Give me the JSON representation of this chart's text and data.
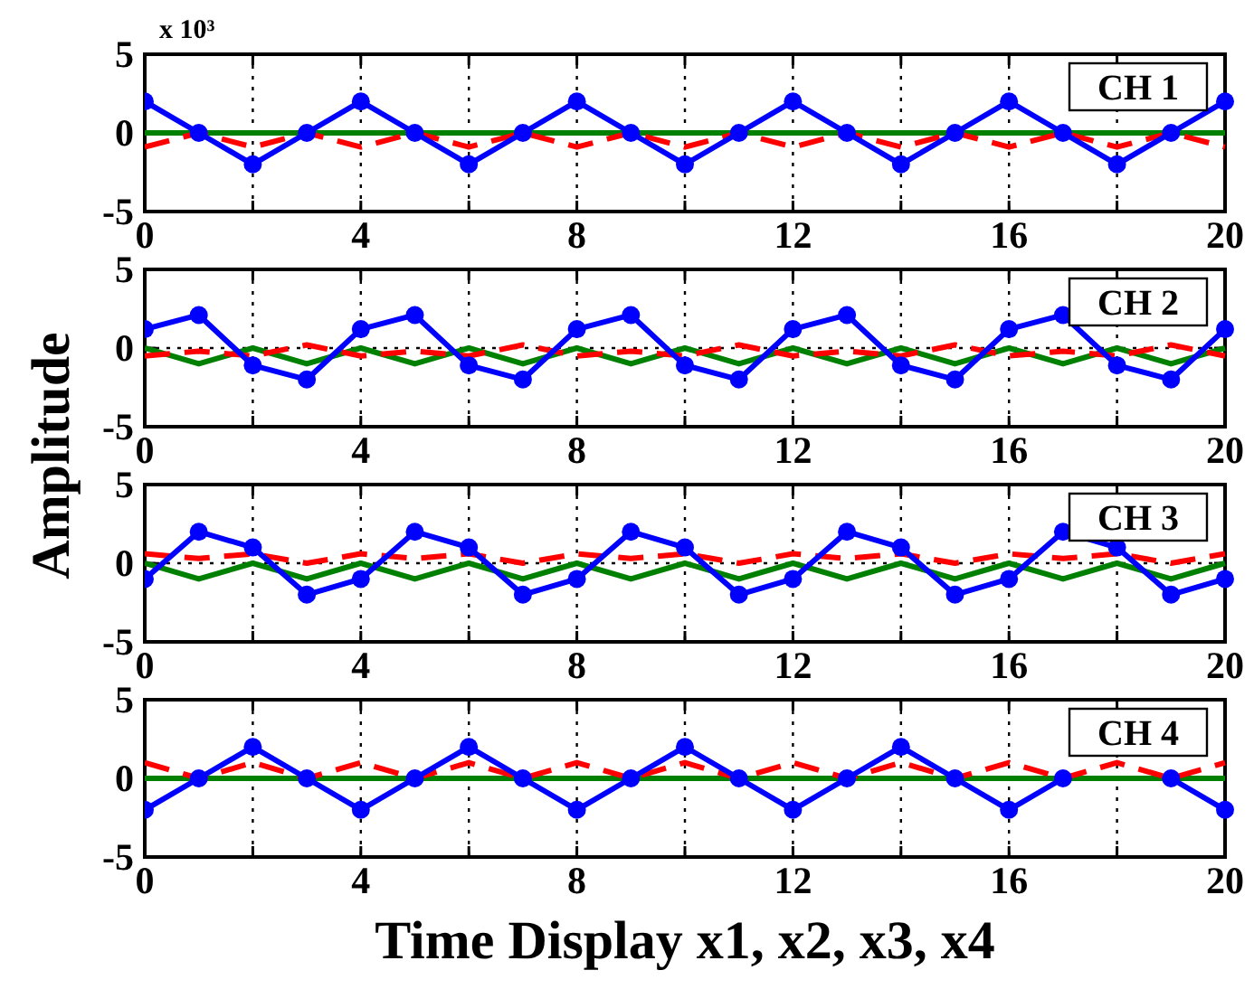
{
  "chart_data": [
    {
      "type": "line",
      "ylabel": "Amplitude",
      "annotations": [
        "x 10³",
        "CH 1"
      ],
      "x": [
        0,
        1,
        2,
        3,
        4,
        5,
        6,
        7,
        8,
        9,
        10,
        11,
        12,
        13,
        14,
        15,
        16,
        17,
        18,
        19,
        20
      ],
      "xlim": [
        0,
        20
      ],
      "xticks": [
        0,
        {
          "value": 2,
          "label": null
        },
        4,
        {
          "value": 6,
          "label": null
        },
        8,
        {
          "value": 10,
          "label": null
        },
        12,
        {
          "value": 14,
          "label": null
        },
        16,
        {
          "value": 18,
          "label": null
        },
        20
      ],
      "ylim": [
        -5,
        5
      ],
      "yticks": [
        -5,
        0,
        5
      ],
      "grid": true,
      "series": [
        {
          "color": "#008000",
          "line_style": "solid",
          "marker": "none",
          "values": [
            0,
            0,
            0,
            0,
            0,
            0,
            0,
            0,
            0,
            0,
            0,
            0,
            0,
            0,
            0,
            0,
            0,
            0,
            0,
            0,
            0
          ]
        },
        {
          "color": "#ff0000",
          "line_style": "dashed",
          "marker": "none",
          "values": [
            -0.9,
            0,
            -0.9,
            0,
            -0.9,
            0,
            -0.9,
            0,
            -0.9,
            0,
            -0.9,
            0,
            -0.9,
            0,
            -0.9,
            0,
            -0.9,
            0,
            -0.9,
            0,
            -0.9
          ]
        },
        {
          "color": "#0000ff",
          "line_style": "solid",
          "marker": "circle",
          "values": [
            2,
            0,
            -2,
            0,
            2,
            0,
            -2,
            0,
            2,
            0,
            -2,
            0,
            2,
            0,
            -2,
            0,
            2,
            0,
            -2,
            0,
            2
          ]
        }
      ]
    },
    {
      "type": "line",
      "annotations": [
        "CH 2"
      ],
      "x": [
        0,
        1,
        2,
        3,
        4,
        5,
        6,
        7,
        8,
        9,
        10,
        11,
        12,
        13,
        14,
        15,
        16,
        17,
        18,
        19,
        20
      ],
      "xlim": [
        0,
        20
      ],
      "xticks": [
        0,
        {
          "value": 2,
          "label": null
        },
        4,
        {
          "value": 6,
          "label": null
        },
        8,
        {
          "value": 10,
          "label": null
        },
        12,
        {
          "value": 14,
          "label": null
        },
        16,
        {
          "value": 18,
          "label": null
        },
        20
      ],
      "ylim": [
        -5,
        5
      ],
      "yticks": [
        -5,
        0,
        5
      ],
      "grid": true,
      "series": [
        {
          "color": "#008000",
          "line_style": "solid",
          "marker": "none",
          "values": [
            0,
            -1,
            0,
            -1,
            0,
            -1,
            0,
            -1,
            0,
            -1,
            0,
            -1,
            0,
            -1,
            0,
            -1,
            0,
            -1,
            0,
            -1,
            0
          ]
        },
        {
          "color": "#ff0000",
          "line_style": "dashed",
          "marker": "none",
          "values": [
            -0.5,
            -0.2,
            -0.5,
            0.2,
            -0.5,
            -0.2,
            -0.5,
            0.2,
            -0.5,
            -0.2,
            -0.5,
            0.2,
            -0.5,
            -0.2,
            -0.5,
            0.2,
            -0.5,
            -0.2,
            -0.5,
            0.2,
            -0.5
          ]
        },
        {
          "color": "#0000ff",
          "line_style": "solid",
          "marker": "circle",
          "values": [
            1.2,
            2.1,
            -1.1,
            -2,
            1.2,
            2.1,
            -1.1,
            -2,
            1.2,
            2.1,
            -1.1,
            -2,
            1.2,
            2.1,
            -1.1,
            -2,
            1.2,
            2.1,
            -1.1,
            -2,
            1.2
          ]
        }
      ]
    },
    {
      "type": "line",
      "annotations": [
        "CH 3"
      ],
      "x": [
        0,
        1,
        2,
        3,
        4,
        5,
        6,
        7,
        8,
        9,
        10,
        11,
        12,
        13,
        14,
        15,
        16,
        17,
        18,
        19,
        20
      ],
      "xlim": [
        0,
        20
      ],
      "xticks": [
        0,
        {
          "value": 2,
          "label": null
        },
        4,
        {
          "value": 6,
          "label": null
        },
        8,
        {
          "value": 10,
          "label": null
        },
        12,
        {
          "value": 14,
          "label": null
        },
        16,
        {
          "value": 18,
          "label": null
        },
        20
      ],
      "ylim": [
        -5,
        5
      ],
      "yticks": [
        -5,
        0,
        5
      ],
      "grid": true,
      "series": [
        {
          "color": "#008000",
          "line_style": "solid",
          "marker": "none",
          "values": [
            0,
            -1,
            0,
            -1,
            0,
            -1,
            0,
            -1,
            0,
            -1,
            0,
            -1,
            0,
            -1,
            0,
            -1,
            0,
            -1,
            0,
            -1,
            0
          ]
        },
        {
          "color": "#ff0000",
          "line_style": "dashed",
          "marker": "none",
          "values": [
            0.6,
            0.3,
            0.6,
            0,
            0.6,
            0.3,
            0.6,
            0,
            0.6,
            0.3,
            0.6,
            0,
            0.6,
            0.3,
            0.6,
            0,
            0.6,
            0.3,
            0.6,
            0,
            0.6
          ]
        },
        {
          "color": "#0000ff",
          "line_style": "solid",
          "marker": "circle",
          "values": [
            -1,
            2,
            1,
            -2,
            -1,
            2,
            1,
            -2,
            -1,
            2,
            1,
            -2,
            -1,
            2,
            1,
            -2,
            -1,
            2,
            1,
            -2,
            -1
          ]
        }
      ]
    },
    {
      "type": "line",
      "xlabel": "Time Display x1, x2, x3, x4",
      "annotations": [
        "CH 4"
      ],
      "x": [
        0,
        1,
        2,
        3,
        4,
        5,
        6,
        7,
        8,
        9,
        10,
        11,
        12,
        13,
        14,
        15,
        16,
        17,
        18,
        19,
        20
      ],
      "xlim": [
        0,
        20
      ],
      "xticks": [
        0,
        {
          "value": 2,
          "label": null
        },
        4,
        {
          "value": 6,
          "label": null
        },
        8,
        {
          "value": 10,
          "label": null
        },
        12,
        {
          "value": 14,
          "label": null
        },
        16,
        {
          "value": 18,
          "label": null
        },
        20
      ],
      "ylim": [
        -5,
        5
      ],
      "yticks": [
        -5,
        0,
        5
      ],
      "grid": true,
      "series": [
        {
          "color": "#008000",
          "line_style": "solid",
          "marker": "none",
          "values": [
            0,
            0,
            0,
            0,
            0,
            0,
            0,
            0,
            0,
            0,
            0,
            0,
            0,
            0,
            0,
            0,
            0,
            0,
            0,
            0,
            0
          ]
        },
        {
          "color": "#ff0000",
          "line_style": "dashed",
          "marker": "none",
          "values": [
            1,
            0,
            1,
            0,
            1,
            0,
            1,
            0,
            1,
            0,
            1,
            0,
            1,
            0,
            1,
            0,
            1,
            0,
            1,
            0,
            1
          ]
        },
        {
          "color": "#0000ff",
          "line_style": "solid",
          "marker": "circle",
          "values": [
            -2,
            0,
            2,
            0,
            -2,
            0,
            2,
            0,
            -2,
            0,
            2,
            0,
            -2,
            0,
            2,
            0,
            -2,
            0,
            null,
            0,
            -2
          ]
        }
      ]
    }
  ]
}
